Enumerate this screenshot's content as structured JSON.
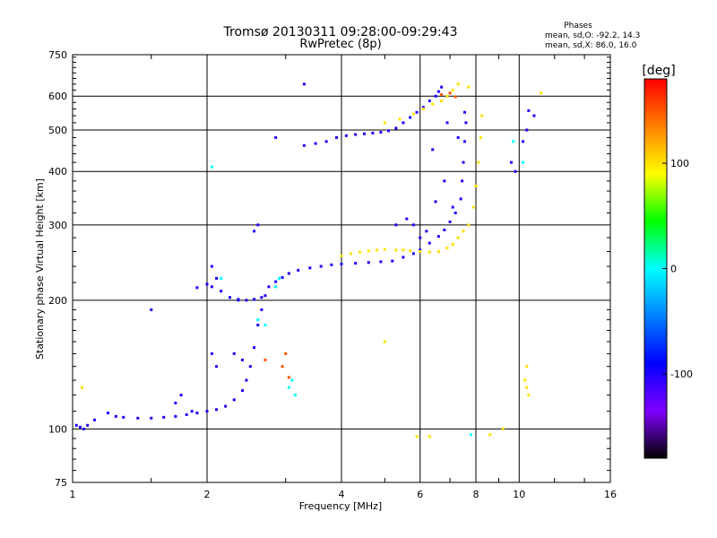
{
  "chart_data": {
    "type": "scatter",
    "title": "Tromsø 20130311 09:28:00-09:29:43",
    "subtitle": "RwPretec (8p)",
    "xlabel": "Frequency [MHz]",
    "ylabel": "Stationary phase Virtual Height [km]",
    "x_scale": "log",
    "y_scale": "log",
    "xlim": [
      1,
      16
    ],
    "ylim": [
      75,
      750
    ],
    "x_ticks": [
      1,
      2,
      4,
      6,
      8,
      10,
      16
    ],
    "y_ticks": [
      75,
      100,
      200,
      300,
      400,
      500,
      600,
      750
    ],
    "grid": true,
    "phases": {
      "title": "Phases",
      "line_o": "mean, sd,O: -92.2, 14.3",
      "line_x": "mean, sd,X: 86.0, 16.0"
    },
    "colorbar": {
      "label": "[deg]",
      "range": [
        -180,
        180
      ],
      "ticks": [
        100,
        0,
        -100
      ],
      "colors": [
        "#ff0000",
        "#ff7f00",
        "#ffff00",
        "#00ff00",
        "#00ffff",
        "#0080ff",
        "#0000ff",
        "#8000ff",
        "#000000"
      ]
    },
    "series": [
      {
        "phase": -100,
        "points": [
          [
            1.02,
            102
          ],
          [
            1.04,
            101
          ],
          [
            1.06,
            100
          ],
          [
            1.08,
            102
          ],
          [
            1.12,
            105
          ],
          [
            1.2,
            109
          ],
          [
            1.25,
            107
          ],
          [
            1.3,
            106.5
          ],
          [
            1.4,
            106
          ],
          [
            1.5,
            106
          ],
          [
            1.6,
            106.5
          ],
          [
            1.7,
            107
          ],
          [
            1.8,
            108
          ],
          [
            1.9,
            109
          ],
          [
            2.0,
            110
          ],
          [
            2.1,
            111
          ],
          [
            2.2,
            113
          ],
          [
            2.3,
            117
          ],
          [
            2.4,
            123
          ],
          [
            2.45,
            130
          ],
          [
            2.5,
            140
          ],
          [
            2.55,
            155
          ],
          [
            2.6,
            175
          ],
          [
            2.65,
            190
          ],
          [
            2.7,
            205
          ],
          [
            2.05,
            215
          ],
          [
            2.15,
            210
          ],
          [
            2.25,
            203
          ],
          [
            2.35,
            200
          ],
          [
            2.45,
            200
          ],
          [
            2.55,
            201
          ],
          [
            2.65,
            203
          ],
          [
            2.75,
            215
          ],
          [
            2.85,
            221
          ],
          [
            2.95,
            226
          ],
          [
            3.05,
            231
          ],
          [
            3.2,
            235
          ],
          [
            3.4,
            238
          ],
          [
            3.6,
            240
          ],
          [
            3.8,
            242
          ],
          [
            4.0,
            243
          ],
          [
            4.3,
            244
          ],
          [
            4.6,
            245
          ],
          [
            4.9,
            246
          ],
          [
            5.2,
            247
          ],
          [
            5.5,
            252
          ],
          [
            5.8,
            257
          ],
          [
            6.0,
            262
          ],
          [
            6.3,
            272
          ],
          [
            6.6,
            282
          ],
          [
            6.8,
            292
          ],
          [
            7.0,
            305
          ],
          [
            7.2,
            320
          ],
          [
            7.4,
            345
          ],
          [
            7.45,
            380
          ],
          [
            7.5,
            420
          ],
          [
            7.55,
            470
          ],
          [
            7.6,
            520
          ],
          [
            7.55,
            550
          ],
          [
            3.3,
            460
          ],
          [
            3.5,
            465
          ],
          [
            3.7,
            470
          ],
          [
            3.9,
            480
          ],
          [
            4.1,
            485
          ],
          [
            4.3,
            488
          ],
          [
            4.5,
            490
          ],
          [
            4.7,
            492
          ],
          [
            4.9,
            494
          ],
          [
            5.1,
            498
          ],
          [
            5.3,
            505
          ],
          [
            5.5,
            520
          ],
          [
            5.7,
            535
          ],
          [
            5.9,
            550
          ],
          [
            6.1,
            565
          ],
          [
            6.3,
            585
          ],
          [
            6.5,
            600
          ],
          [
            6.6,
            615
          ],
          [
            6.7,
            630
          ],
          [
            1.9,
            214
          ],
          [
            2.0,
            218
          ],
          [
            2.05,
            240
          ],
          [
            2.1,
            225
          ],
          [
            2.35,
            201
          ],
          [
            2.6,
            300
          ],
          [
            2.55,
            290
          ],
          [
            1.85,
            110
          ],
          [
            1.75,
            120
          ],
          [
            1.7,
            115
          ],
          [
            2.1,
            140
          ],
          [
            2.05,
            150
          ],
          [
            2.4,
            145
          ],
          [
            2.3,
            150
          ],
          [
            1.5,
            190
          ],
          [
            2.85,
            480
          ],
          [
            3.3,
            640
          ],
          [
            5.3,
            300
          ],
          [
            5.6,
            310
          ],
          [
            6.2,
            290
          ],
          [
            6.5,
            340
          ],
          [
            6.8,
            380
          ],
          [
            7.1,
            330
          ],
          [
            5.8,
            300
          ],
          [
            6.0,
            280
          ],
          [
            6.4,
            450
          ],
          [
            6.9,
            520
          ],
          [
            7.3,
            480
          ],
          [
            10.5,
            555
          ],
          [
            10.8,
            540
          ],
          [
            10.4,
            500
          ],
          [
            10.2,
            470
          ],
          [
            9.8,
            400
          ],
          [
            9.6,
            420
          ]
        ]
      },
      {
        "phase": 100,
        "points": [
          [
            4.0,
            254
          ],
          [
            4.2,
            257
          ],
          [
            4.4,
            259
          ],
          [
            4.6,
            261
          ],
          [
            4.8,
            262
          ],
          [
            5.0,
            263
          ],
          [
            5.3,
            262
          ],
          [
            5.5,
            262
          ],
          [
            5.7,
            261
          ],
          [
            6.0,
            260
          ],
          [
            6.3,
            259
          ],
          [
            6.6,
            260
          ],
          [
            6.9,
            265
          ],
          [
            7.1,
            270
          ],
          [
            7.3,
            280
          ],
          [
            7.5,
            290
          ],
          [
            7.7,
            300
          ],
          [
            7.9,
            330
          ],
          [
            8.0,
            370
          ],
          [
            8.1,
            420
          ],
          [
            8.2,
            480
          ],
          [
            8.25,
            540
          ],
          [
            5.0,
            520
          ],
          [
            5.4,
            530
          ],
          [
            5.8,
            545
          ],
          [
            6.1,
            560
          ],
          [
            6.4,
            575
          ],
          [
            6.7,
            585
          ],
          [
            6.9,
            600
          ],
          [
            7.1,
            620
          ],
          [
            7.3,
            640
          ],
          [
            7.7,
            630
          ],
          [
            10.4,
            140
          ],
          [
            10.3,
            130
          ],
          [
            10.4,
            125
          ],
          [
            10.5,
            120
          ],
          [
            11.2,
            610
          ],
          [
            9.2,
            100
          ],
          [
            8.6,
            97
          ],
          [
            5.9,
            96
          ],
          [
            6.3,
            96
          ],
          [
            5.0,
            160
          ],
          [
            1.05,
            125
          ]
        ]
      },
      {
        "phase": 0,
        "points": [
          [
            2.85,
            215
          ],
          [
            2.9,
            225
          ],
          [
            2.7,
            175
          ],
          [
            2.6,
            180
          ],
          [
            3.1,
            130
          ],
          [
            3.05,
            125
          ],
          [
            3.15,
            120
          ],
          [
            2.05,
            410
          ],
          [
            9.7,
            470
          ],
          [
            10.2,
            420
          ],
          [
            7.8,
            97
          ],
          [
            2.15,
            225
          ]
        ]
      },
      {
        "phase": 150,
        "points": [
          [
            3.0,
            150
          ],
          [
            2.95,
            140
          ],
          [
            2.7,
            145
          ],
          [
            6.7,
            605
          ],
          [
            7.0,
            610
          ],
          [
            7.2,
            598
          ],
          [
            3.05,
            132
          ]
        ]
      }
    ]
  }
}
